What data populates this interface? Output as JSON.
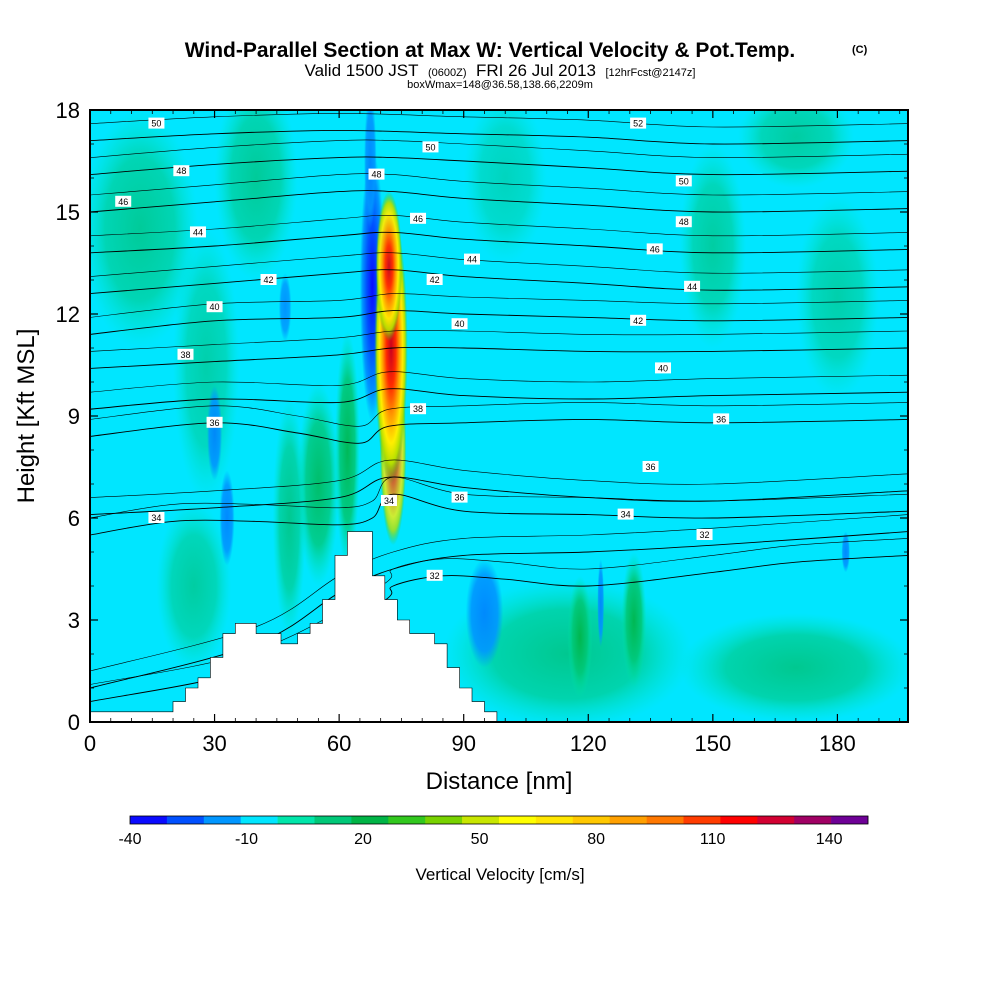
{
  "chart_data": {
    "type": "heatmap",
    "title": "Wind-Parallel Section at Max W: Vertical Velocity & Pot.Temp.",
    "title_tag": "(C)",
    "subtitle": "Valid 1500 JST",
    "subtitle_small1": "(0600Z)",
    "subtitle_mid": "FRI 26 Jul 2013",
    "subtitle_small2": "[12hrFcst@2147z]",
    "subtitle2": "boxWmax=148@36.58,138.66,2209m",
    "xlabel": "Distance [nm]",
    "ylabel": "Height [Kft MSL]",
    "xlim": [
      0,
      197
    ],
    "ylim": [
      0,
      18
    ],
    "x_ticks": [
      "0",
      "30",
      "60",
      "90",
      "120",
      "150",
      "180"
    ],
    "y_ticks": [
      "0",
      "3",
      "6",
      "9",
      "12",
      "15",
      "18"
    ],
    "x_tick_values": [
      0,
      30,
      60,
      90,
      120,
      150,
      180
    ],
    "y_tick_values": [
      0,
      3,
      6,
      9,
      12,
      15,
      18
    ],
    "colorbar": {
      "label": "Vertical Velocity [cm/s]",
      "min": -40,
      "max": 150,
      "ticks": [
        "-40",
        "-10",
        "20",
        "50",
        "80",
        "110",
        "140"
      ],
      "tick_values": [
        -40,
        -10,
        20,
        50,
        80,
        110,
        140
      ],
      "colors": [
        "#0a0aff",
        "#0050ff",
        "#0096ff",
        "#00e6ff",
        "#00e6aa",
        "#00c878",
        "#00b446",
        "#32c81e",
        "#78d200",
        "#c8e600",
        "#ffff00",
        "#ffe600",
        "#ffc800",
        "#ffa000",
        "#ff7800",
        "#ff3c00",
        "#ff0000",
        "#d20032",
        "#a00064",
        "#6e0096"
      ]
    },
    "terrain": [
      [
        0,
        0.3
      ],
      [
        20,
        0.3
      ],
      [
        20,
        0.6
      ],
      [
        23,
        0.6
      ],
      [
        23,
        1.0
      ],
      [
        26,
        1.0
      ],
      [
        26,
        1.3
      ],
      [
        29,
        1.3
      ],
      [
        29,
        1.9
      ],
      [
        32,
        1.9
      ],
      [
        32,
        2.6
      ],
      [
        35,
        2.6
      ],
      [
        35,
        2.9
      ],
      [
        40,
        2.9
      ],
      [
        40,
        2.6
      ],
      [
        46,
        2.6
      ],
      [
        46,
        2.3
      ],
      [
        50,
        2.3
      ],
      [
        50,
        2.6
      ],
      [
        53,
        2.6
      ],
      [
        53,
        2.9
      ],
      [
        56,
        2.9
      ],
      [
        56,
        3.6
      ],
      [
        59,
        3.6
      ],
      [
        59,
        4.9
      ],
      [
        62,
        4.9
      ],
      [
        62,
        5.6
      ],
      [
        68,
        5.6
      ],
      [
        68,
        4.3
      ],
      [
        71,
        4.3
      ],
      [
        71,
        3.6
      ],
      [
        74,
        3.6
      ],
      [
        74,
        3.0
      ],
      [
        77,
        3.0
      ],
      [
        77,
        2.6
      ],
      [
        83,
        2.6
      ],
      [
        83,
        2.3
      ],
      [
        86,
        2.3
      ],
      [
        86,
        1.6
      ],
      [
        89,
        1.6
      ],
      [
        89,
        1.0
      ],
      [
        92,
        1.0
      ],
      [
        92,
        0.6
      ],
      [
        95,
        0.6
      ],
      [
        95,
        0.3
      ],
      [
        98,
        0.3
      ],
      [
        98,
        0
      ]
    ],
    "theta_contours": [
      {
        "value": 32,
        "points": [
          [
            0,
            0.6
          ],
          [
            40,
            1.6
          ],
          [
            70,
            3.5
          ],
          [
            73,
            4.0
          ],
          [
            85,
            4.3
          ],
          [
            100,
            4.2
          ],
          [
            120,
            4.0
          ],
          [
            150,
            4.4
          ],
          [
            170,
            4.7
          ],
          [
            197,
            4.9
          ]
        ]
      },
      {
        "value": 32,
        "points": [
          [
            0,
            1.0
          ],
          [
            40,
            2.3
          ],
          [
            60,
            3.8
          ],
          [
            73,
            4.5
          ],
          [
            90,
            4.9
          ],
          [
            120,
            5.0
          ],
          [
            150,
            5.2
          ],
          [
            197,
            5.6
          ]
        ]
      },
      {
        "value": 34,
        "points": [
          [
            0,
            5.5
          ],
          [
            20,
            5.9
          ],
          [
            40,
            5.9
          ],
          [
            60,
            5.8
          ],
          [
            68,
            6.0
          ],
          [
            73,
            6.7
          ],
          [
            90,
            6.2
          ],
          [
            120,
            6.1
          ],
          [
            150,
            6.0
          ],
          [
            197,
            6.2
          ]
        ]
      },
      {
        "value": 34,
        "points": [
          [
            0,
            6.1
          ],
          [
            30,
            6.3
          ],
          [
            60,
            6.6
          ],
          [
            72,
            7.2
          ],
          [
            90,
            6.9
          ],
          [
            120,
            6.6
          ],
          [
            150,
            6.5
          ],
          [
            197,
            6.8
          ]
        ]
      },
      {
        "value": 36,
        "points": [
          [
            0,
            8.4
          ],
          [
            30,
            8.8
          ],
          [
            50,
            8.5
          ],
          [
            65,
            8.2
          ],
          [
            72,
            8.7
          ],
          [
            90,
            8.8
          ],
          [
            120,
            8.9
          ],
          [
            150,
            8.8
          ],
          [
            197,
            8.9
          ]
        ]
      },
      {
        "value": 36,
        "points": [
          [
            0,
            9.2
          ],
          [
            30,
            9.5
          ],
          [
            60,
            9.4
          ],
          [
            72,
            9.8
          ],
          [
            90,
            9.6
          ],
          [
            120,
            9.5
          ],
          [
            150,
            9.6
          ],
          [
            197,
            9.7
          ]
        ]
      },
      {
        "value": 38,
        "points": [
          [
            0,
            10.4
          ],
          [
            30,
            10.6
          ],
          [
            60,
            10.8
          ],
          [
            73,
            11.0
          ],
          [
            90,
            11.0
          ],
          [
            120,
            10.9
          ],
          [
            150,
            10.9
          ],
          [
            197,
            11.0
          ]
        ]
      },
      {
        "value": 40,
        "points": [
          [
            0,
            11.4
          ],
          [
            30,
            11.8
          ],
          [
            60,
            11.9
          ],
          [
            73,
            12.1
          ],
          [
            90,
            12.0
          ],
          [
            120,
            11.9
          ],
          [
            150,
            11.8
          ],
          [
            197,
            11.9
          ]
        ]
      },
      {
        "value": 42,
        "points": [
          [
            0,
            12.6
          ],
          [
            30,
            12.9
          ],
          [
            60,
            13.2
          ],
          [
            73,
            13.3
          ],
          [
            90,
            13.1
          ],
          [
            120,
            12.9
          ],
          [
            150,
            12.7
          ],
          [
            197,
            12.8
          ]
        ]
      },
      {
        "value": 44,
        "points": [
          [
            0,
            13.8
          ],
          [
            30,
            14.0
          ],
          [
            60,
            14.3
          ],
          [
            73,
            14.4
          ],
          [
            90,
            14.2
          ],
          [
            120,
            14.0
          ],
          [
            150,
            13.8
          ],
          [
            197,
            13.9
          ]
        ]
      },
      {
        "value": 46,
        "points": [
          [
            0,
            15.0
          ],
          [
            30,
            15.3
          ],
          [
            60,
            15.6
          ],
          [
            73,
            15.6
          ],
          [
            90,
            15.4
          ],
          [
            120,
            15.2
          ],
          [
            150,
            15.0
          ],
          [
            197,
            15.1
          ]
        ]
      },
      {
        "value": 48,
        "points": [
          [
            0,
            16.1
          ],
          [
            30,
            16.4
          ],
          [
            60,
            16.6
          ],
          [
            73,
            16.6
          ],
          [
            90,
            16.5
          ],
          [
            120,
            16.3
          ],
          [
            150,
            16.1
          ],
          [
            197,
            16.2
          ]
        ]
      },
      {
        "value": 50,
        "points": [
          [
            0,
            17.1
          ],
          [
            30,
            17.3
          ],
          [
            60,
            17.4
          ],
          [
            90,
            17.3
          ],
          [
            120,
            17.2
          ],
          [
            150,
            17.0
          ],
          [
            197,
            17.1
          ]
        ]
      }
    ],
    "contour_labels": [
      {
        "text": "50",
        "x": 16,
        "y": 17.6
      },
      {
        "text": "52",
        "x": 132,
        "y": 17.6
      },
      {
        "text": "50",
        "x": 82,
        "y": 16.9
      },
      {
        "text": "48",
        "x": 22,
        "y": 16.2
      },
      {
        "text": "48",
        "x": 69,
        "y": 16.1
      },
      {
        "text": "50",
        "x": 143,
        "y": 15.9
      },
      {
        "text": "46",
        "x": 8,
        "y": 15.3
      },
      {
        "text": "46",
        "x": 79,
        "y": 14.8
      },
      {
        "text": "48",
        "x": 143,
        "y": 14.7
      },
      {
        "text": "44",
        "x": 26,
        "y": 14.4
      },
      {
        "text": "46",
        "x": 136,
        "y": 13.9
      },
      {
        "text": "44",
        "x": 92,
        "y": 13.6
      },
      {
        "text": "42",
        "x": 43,
        "y": 13.0
      },
      {
        "text": "42",
        "x": 83,
        "y": 13.0
      },
      {
        "text": "44",
        "x": 145,
        "y": 12.8
      },
      {
        "text": "40",
        "x": 30,
        "y": 12.2
      },
      {
        "text": "42",
        "x": 132,
        "y": 11.8
      },
      {
        "text": "40",
        "x": 89,
        "y": 11.7
      },
      {
        "text": "38",
        "x": 23,
        "y": 10.8
      },
      {
        "text": "40",
        "x": 138,
        "y": 10.4
      },
      {
        "text": "38",
        "x": 79,
        "y": 9.2
      },
      {
        "text": "36",
        "x": 30,
        "y": 8.8
      },
      {
        "text": "36",
        "x": 152,
        "y": 8.9
      },
      {
        "text": "36",
        "x": 135,
        "y": 7.5
      },
      {
        "text": "36",
        "x": 89,
        "y": 6.6
      },
      {
        "text": "34",
        "x": 72,
        "y": 6.5
      },
      {
        "text": "34",
        "x": 16,
        "y": 6.0
      },
      {
        "text": "34",
        "x": 129,
        "y": 6.1
      },
      {
        "text": "32",
        "x": 148,
        "y": 5.5
      },
      {
        "text": "32",
        "x": 83,
        "y": 4.3
      }
    ],
    "w_features": [
      {
        "type": "updraft_core",
        "x": 72.5,
        "y": 11.5,
        "w_max": 148
      },
      {
        "type": "downdraft",
        "x": 68.0,
        "y": 12.5,
        "w_min": -40
      }
    ]
  }
}
